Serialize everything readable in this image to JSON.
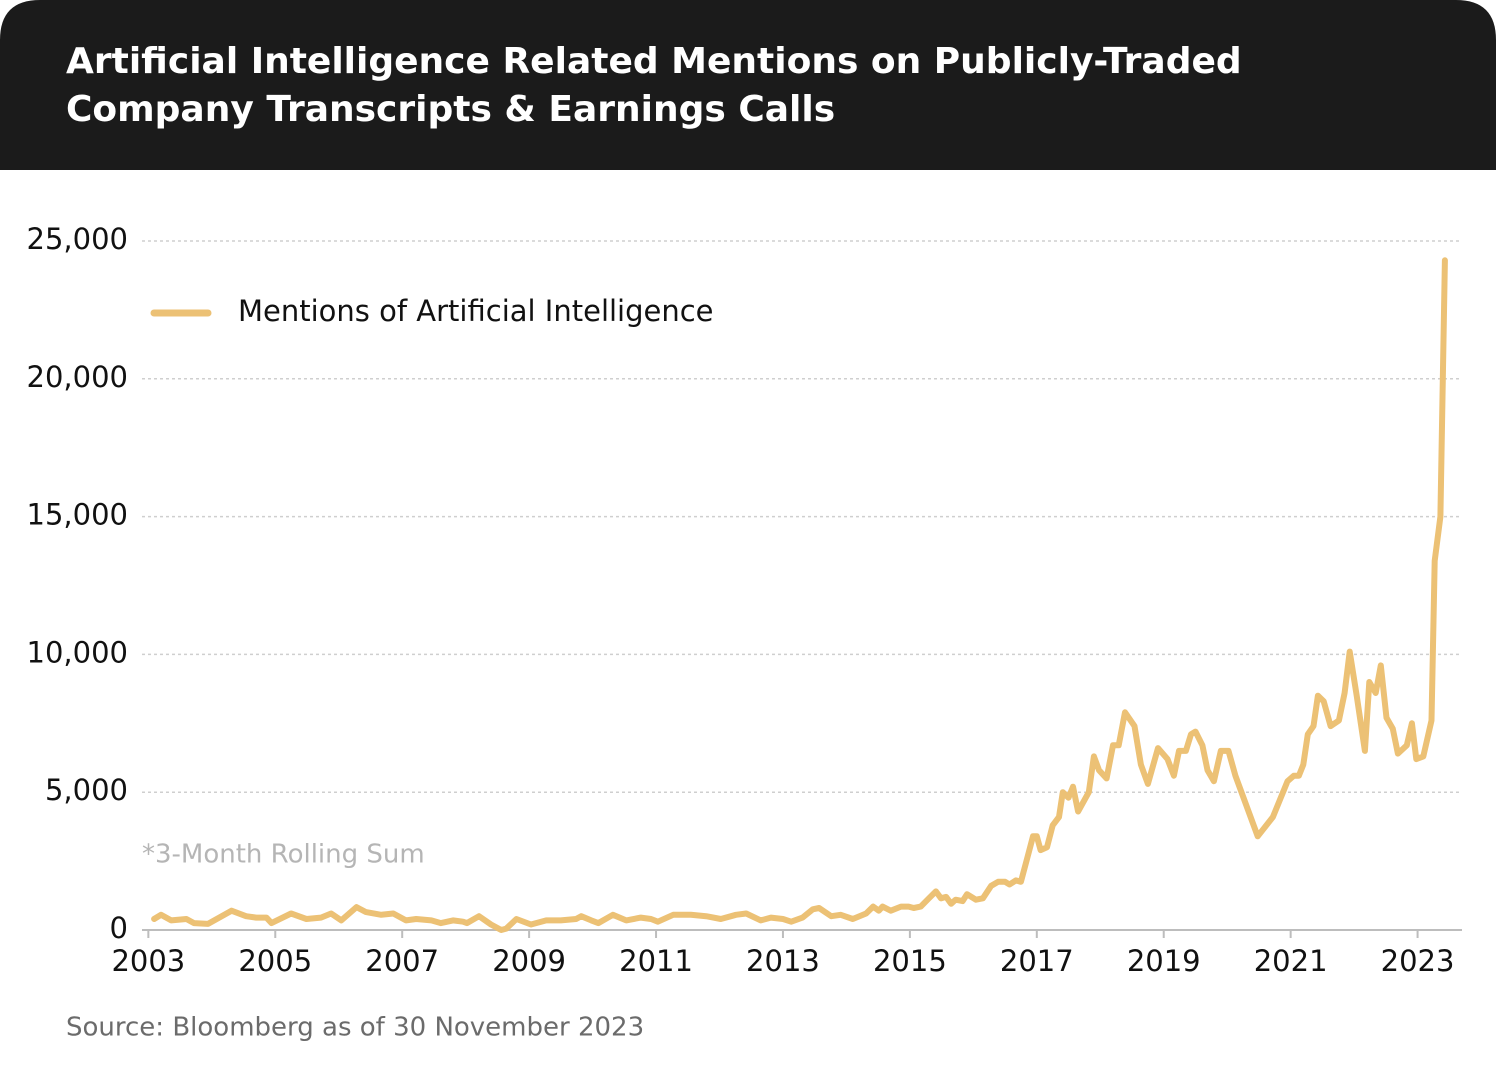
{
  "chart_data": {
    "type": "line",
    "title": "Artificial Intelligence Related Mentions on Publicly-Traded Company Transcripts & Earnings Calls",
    "note": "*3-Month Rolling Sum",
    "source": "Source: Bloomberg as of 30 November 2023",
    "legend": "upper left",
    "grid": true,
    "xlim": [
      2002.9,
      2023.7
    ],
    "xticks": [
      2003,
      2005,
      2007,
      2009,
      2011,
      2013,
      2015,
      2017,
      2019,
      2021,
      2023
    ],
    "ylim": [
      0,
      25000
    ],
    "yticks": [
      0,
      {
        "value": 5000,
        "label": "5,000"
      },
      {
        "value": 10000,
        "label": "10,000"
      },
      {
        "value": 15000,
        "label": "15,000"
      },
      {
        "value": 20000,
        "label": "20,000"
      },
      {
        "value": 25000,
        "label": "25,000"
      }
    ],
    "x": [
      2003.09,
      2003.2,
      2003.36,
      2003.6,
      2003.72,
      2003.94,
      2004.31,
      2004.54,
      2004.7,
      2004.86,
      2004.94,
      2005.25,
      2005.49,
      2005.72,
      2005.88,
      2006.04,
      2006.28,
      2006.43,
      2006.67,
      2006.86,
      2007.06,
      2007.22,
      2007.46,
      2007.61,
      2007.8,
      2007.96,
      2008.02,
      2008.21,
      2008.4,
      2008.56,
      2008.64,
      2008.8,
      2009.03,
      2009.27,
      2009.5,
      2009.74,
      2009.82,
      2009.98,
      2010.09,
      2010.32,
      2010.53,
      2010.76,
      2010.92,
      2011.03,
      2011.27,
      2011.55,
      2011.79,
      2012.02,
      2012.26,
      2012.42,
      2012.65,
      2012.81,
      2013.0,
      2013.13,
      2013.31,
      2013.47,
      2013.57,
      2013.76,
      2013.91,
      2014.1,
      2014.31,
      2014.42,
      2014.51,
      2014.57,
      2014.7,
      2014.86,
      2014.98,
      2015.06,
      2015.17,
      2015.3,
      2015.41,
      2015.49,
      2015.57,
      2015.65,
      2015.72,
      2015.83,
      2015.9,
      2016.04,
      2016.15,
      2016.28,
      2016.39,
      2016.5,
      2016.57,
      2016.67,
      2016.75,
      2016.86,
      2016.94,
      2017.0,
      2017.06,
      2017.16,
      2017.25,
      2017.35,
      2017.41,
      2017.5,
      2017.57,
      2017.65,
      2017.82,
      2017.9,
      2017.98,
      2018.1,
      2018.2,
      2018.29,
      2018.39,
      2018.54,
      2018.64,
      2018.75,
      2018.91,
      2019.06,
      2019.16,
      2019.24,
      2019.35,
      2019.43,
      2019.5,
      2019.61,
      2019.69,
      2019.79,
      2019.9,
      2020.02,
      2020.13,
      2020.48,
      2020.72,
      2020.95,
      2021.05,
      2021.13,
      2021.2,
      2021.27,
      2021.36,
      2021.43,
      2021.52,
      2021.63,
      2021.76,
      2021.85,
      2021.93,
      2022.04,
      2022.17,
      2022.24,
      2022.34,
      2022.42,
      2022.51,
      2022.61,
      2022.69,
      2022.83,
      2022.91,
      2022.98,
      2023.09,
      2023.22,
      2023.27,
      2023.36,
      2023.43
    ],
    "series": [
      {
        "name": "Mentions of Artificial Intelligence",
        "color": "#ecc175",
        "values": [
          400,
          550,
          350,
          400,
          250,
          220,
          700,
          500,
          450,
          450,
          250,
          600,
          400,
          450,
          600,
          350,
          830,
          650,
          550,
          600,
          350,
          400,
          350,
          250,
          350,
          300,
          250,
          500,
          200,
          0,
          50,
          400,
          200,
          350,
          350,
          400,
          500,
          350,
          250,
          550,
          350,
          450,
          400,
          300,
          550,
          550,
          500,
          400,
          550,
          600,
          350,
          450,
          400,
          300,
          450,
          750,
          800,
          500,
          550,
          400,
          600,
          850,
          700,
          850,
          700,
          850,
          850,
          800,
          850,
          1150,
          1400,
          1150,
          1200,
          950,
          1100,
          1050,
          1300,
          1100,
          1150,
          1600,
          1750,
          1750,
          1650,
          1800,
          1750,
          2700,
          3400,
          3400,
          2900,
          3000,
          3800,
          4100,
          5000,
          4800,
          5200,
          4300,
          5000,
          6300,
          5800,
          5500,
          6700,
          6700,
          7900,
          7400,
          6000,
          5300,
          6600,
          6200,
          5600,
          6500,
          6500,
          7100,
          7200,
          6700,
          5800,
          5400,
          6500,
          6500,
          5600,
          3400,
          4100,
          5400,
          5600,
          5600,
          6000,
          7100,
          7400,
          8500,
          8300,
          7400,
          7600,
          8600,
          10100,
          8500,
          6500,
          9000,
          8600,
          9600,
          7700,
          7300,
          6400,
          6700,
          7500,
          6200,
          6300,
          7600,
          13400,
          15000,
          24300
        ]
      }
    ]
  }
}
